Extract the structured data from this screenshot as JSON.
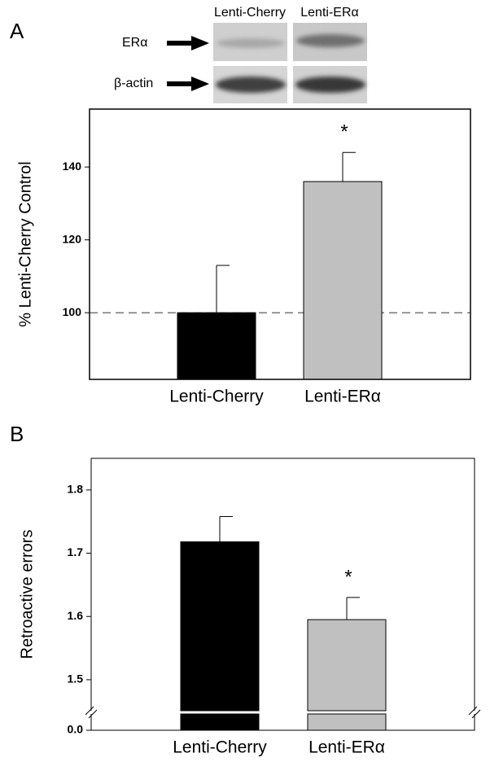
{
  "blot": {
    "columns": [
      "Lenti-Cherry",
      "Lenti-ERα"
    ],
    "rows": [
      "ERα",
      "β-actin"
    ]
  },
  "chart_data": [
    {
      "type": "bar",
      "panel": "A",
      "ylabel": "% Lenti-Cherry Control",
      "categories": [
        "Lenti-Cherry",
        "Lenti-ERα"
      ],
      "values": [
        100,
        136
      ],
      "errors": [
        13,
        8
      ],
      "colors": [
        "#000000",
        "#c0c0c0"
      ],
      "ylim": [
        81.7,
        155.9
      ],
      "yticks": [
        100,
        120,
        140
      ],
      "reference_line": 100,
      "annotations": [
        {
          "text": "*",
          "category": "Lenti-ERα"
        }
      ]
    },
    {
      "type": "bar",
      "panel": "B",
      "ylabel": "Retroactive errors",
      "categories": [
        "Lenti-Cherry",
        "Lenti-ERα"
      ],
      "values": [
        1.718,
        1.595
      ],
      "errors": [
        0.04,
        0.035
      ],
      "colors": [
        "#000000",
        "#c0c0c0"
      ],
      "ylim": [
        1.451,
        1.85
      ],
      "yticks": [
        1.5,
        1.6,
        1.7,
        1.8
      ],
      "y_break": true,
      "ybreak_ticks": [
        {
          "value": 0,
          "label": "0.0"
        }
      ],
      "annotations": [
        {
          "text": "*",
          "category": "Lenti-ERα"
        }
      ]
    }
  ]
}
